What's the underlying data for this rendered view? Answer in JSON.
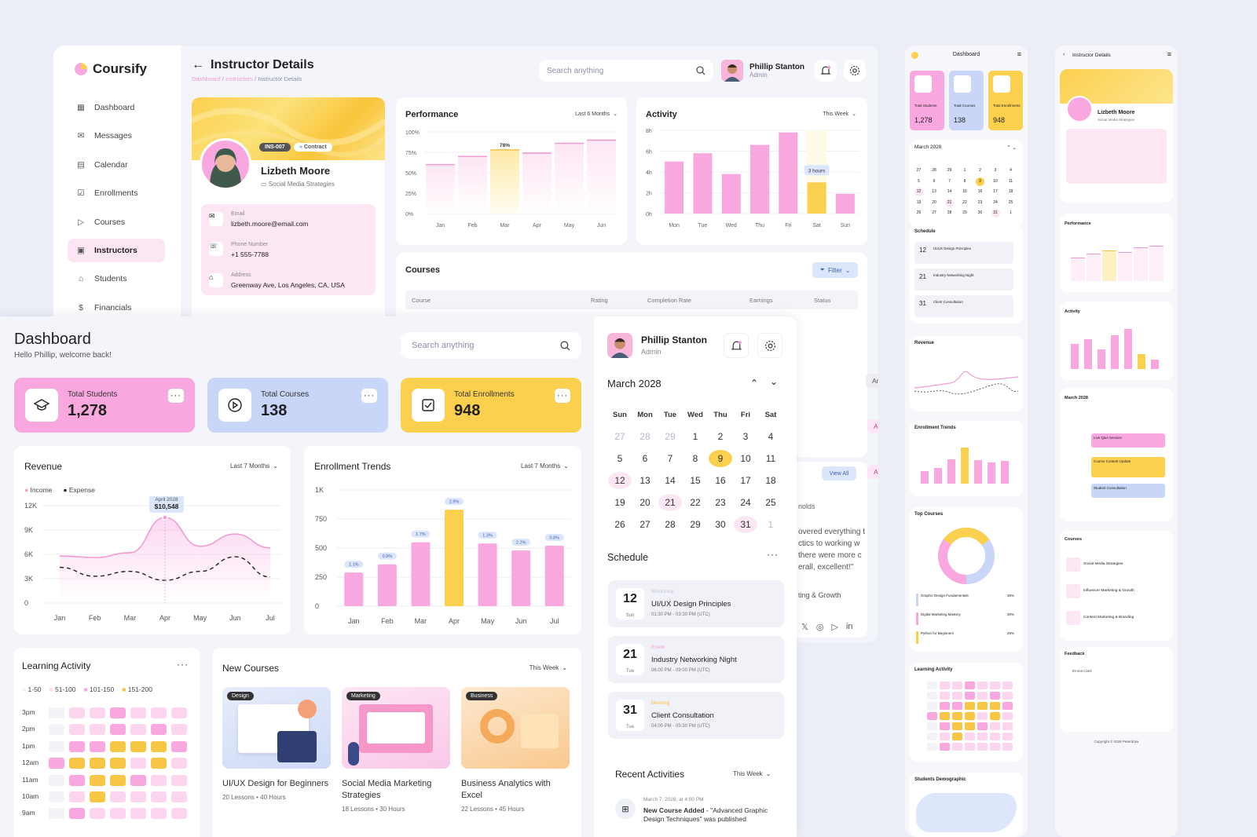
{
  "back": {
    "brand": "Coursify",
    "page_title": "Instructor Details",
    "breadcrumb": [
      "Dashboard",
      "Instructors",
      "Instructor Details"
    ],
    "search_placeholder": "Search anything",
    "user": {
      "name": "Phillip Stanton",
      "role": "Admin"
    },
    "nav": [
      "Dashboard",
      "Messages",
      "Calendar",
      "Enrollments",
      "Courses",
      "Instructors",
      "Students",
      "Financials"
    ],
    "nav_active": "Instructors",
    "profile": {
      "id": "INS-007",
      "type": "Contract",
      "name": "Lizbeth Moore",
      "specialty": "Social Media Strategies",
      "email_label": "Email",
      "email": "lizbeth.moore@email.com",
      "phone_label": "Phone Number",
      "phone": "+1 555-7788",
      "address_label": "Address",
      "address": "Greenway Ave, Los Angeles, CA, USA"
    },
    "performance": {
      "title": "Performance",
      "range": "Last 6 Months",
      "highlight": "78%"
    },
    "activity": {
      "title": "Activity",
      "range": "This Week",
      "highlight": "3 hours"
    },
    "courses": {
      "title": "Courses",
      "filter": "Filter",
      "columns": [
        "Course",
        "Rating",
        "Completion Rate",
        "Earnings",
        "Status"
      ],
      "statuses": [
        "Archived",
        "Active",
        "Active"
      ],
      "view_all": "View All"
    },
    "feedback": {
      "label": "nolds",
      "lines": [
        "overed everything t",
        "ctics to working w",
        "there were more c",
        "erall, excellent!\""
      ],
      "course": "ting & Growth"
    }
  },
  "dashboard": {
    "title": "Dashboard",
    "greeting": "Hello Phillip, welcome back!",
    "search_placeholder": "Search anything",
    "user": {
      "name": "Phillip Stanton",
      "role": "Admin"
    },
    "stats": [
      {
        "label": "Total Students",
        "value": "1,278",
        "color": "#f9a8df",
        "icon": "graduation-cap-icon"
      },
      {
        "label": "Total Courses",
        "value": "138",
        "color": "#c9d6f7",
        "icon": "play-circle-icon"
      },
      {
        "label": "Total Enrollments",
        "value": "948",
        "color": "#fcd04f",
        "icon": "checkbox-icon"
      }
    ],
    "revenue": {
      "title": "Revenue",
      "range": "Last 7 Months",
      "legend": [
        "Income",
        "Expense"
      ],
      "tooltip_date": "April 2028",
      "tooltip_value": "$10,548"
    },
    "enrollment": {
      "title": "Enrollment Trends",
      "range": "Last 7 Months",
      "badges": [
        "1.1%",
        "0.9%",
        "1.7%",
        "2.9%",
        "1.3%",
        "2.2%",
        "0.8%"
      ]
    },
    "learning": {
      "title": "Learning Activity",
      "legend": [
        "1-50",
        "51-100",
        "101-150",
        "151-200"
      ],
      "hours": [
        "3pm",
        "2pm",
        "1pm",
        "12am",
        "11am",
        "10am",
        "9am"
      ]
    },
    "new_courses": {
      "title": "New Courses",
      "range": "This Week",
      "items": [
        {
          "tag": "Design",
          "title": "UI/UX Design for Beginners",
          "meta": "20 Lessons  •  40 Hours"
        },
        {
          "tag": "Marketing",
          "title": "Social Media Marketing Strategies",
          "meta": "18 Lessons  •  30 Hours"
        },
        {
          "tag": "Business",
          "title": "Business Analytics with Excel",
          "meta": "22 Lessons  •  45 Hours"
        }
      ]
    },
    "calendar": {
      "month": "March 2028",
      "weekdays": [
        "Sun",
        "Mon",
        "Tue",
        "Wed",
        "Thu",
        "Fri",
        "Sat"
      ],
      "days": [
        "27",
        "28",
        "29",
        "1",
        "2",
        "3",
        "4",
        "5",
        "6",
        "7",
        "8",
        "9",
        "10",
        "11",
        "12",
        "13",
        "14",
        "15",
        "16",
        "17",
        "18",
        "19",
        "20",
        "21",
        "22",
        "23",
        "24",
        "25",
        "26",
        "27",
        "28",
        "29",
        "30",
        "31",
        "1"
      ]
    },
    "schedule": {
      "title": "Schedule",
      "items": [
        {
          "day": "12",
          "dow": "Sun",
          "type": "Workshop",
          "title": "UI/UX Design Principles",
          "time": "01:30 PM - 03:30 PM (UTC)",
          "color": "#c4c6d4"
        },
        {
          "day": "21",
          "dow": "Tue",
          "type": "Event",
          "title": "Industry Networking Night",
          "time": "06:00 PM - 09:00 PM (UTC)",
          "color": "#f29bd3"
        },
        {
          "day": "31",
          "dow": "Tue",
          "type": "Meeting",
          "title": "Client Consultation",
          "time": "04:00 PM - 05:30 PM (UTC)",
          "color": "#f5c24a"
        }
      ]
    },
    "recent": {
      "title": "Recent Activities",
      "range": "This Week",
      "date": "March 7, 2028, at 4:00 PM",
      "text_bold": "New Course Added",
      "text": " - \"Advanced Graphic Design Techniques\" was published"
    }
  },
  "mobile1": {
    "title": "Dashboard",
    "stats": [
      {
        "label": "Total Students",
        "value": "1,278"
      },
      {
        "label": "Total Courses",
        "value": "138"
      },
      {
        "label": "Total Enrollments",
        "value": "948"
      }
    ],
    "month": "March 2028",
    "schedule_title": "Schedule",
    "schedule": [
      {
        "day": "12",
        "title": "UI/UX Design Principles"
      },
      {
        "day": "21",
        "title": "Industry Networking Night"
      },
      {
        "day": "31",
        "title": "Client Consultation"
      }
    ],
    "revenue_title": "Revenue",
    "enrollment_title": "Enrollment Trends",
    "top_courses_title": "Top Courses",
    "top_courses": [
      {
        "name": "Graphic Design Fundamentals",
        "pct": "35%"
      },
      {
        "name": "Digital Marketing Mastery",
        "pct": "30%"
      },
      {
        "name": "Python for Beginners",
        "pct": "25%"
      }
    ],
    "learning_title": "Learning Activity",
    "demographic_title": "Students Demographic"
  },
  "mobile2": {
    "title": "Instructor Details",
    "name": "Lizbeth Moore",
    "specialty": "Social Media Strategies",
    "performance_title": "Performance",
    "activity_title": "Activity",
    "month": "March 2028",
    "events": [
      "Live Q&A Session",
      "Course Content Update",
      "Student Consultation"
    ],
    "courses_title": "Courses",
    "courses": [
      "Social Media Strategies",
      "Influencer Marketing & Growth",
      "Content Marketing & Branding"
    ],
    "feedback_title": "Feedback",
    "feedback_name": "Emma Clark",
    "copyright": "Copyright © 2028 Peterdraw"
  },
  "chart_data": [
    {
      "type": "line",
      "title": "Revenue",
      "categories": [
        "Jan",
        "Feb",
        "Mar",
        "Apr",
        "May",
        "Jun",
        "Jul"
      ],
      "yticks": [
        "0",
        "3K",
        "6K",
        "9K",
        "12K"
      ],
      "ylim": [
        0,
        12000
      ],
      "series": [
        {
          "name": "Income",
          "values": [
            5800,
            5600,
            6200,
            10548,
            7000,
            8500,
            6800
          ]
        },
        {
          "name": "Expense",
          "values": [
            4400,
            3300,
            3900,
            2800,
            3900,
            5700,
            3200
          ]
        }
      ]
    },
    {
      "type": "bar",
      "title": "Enrollment Trends",
      "categories": [
        "Jan",
        "Feb",
        "Mar",
        "Apr",
        "May",
        "Jun",
        "Jul"
      ],
      "yticks": [
        "0",
        "250",
        "500",
        "750",
        "1K"
      ],
      "ylim": [
        0,
        1000
      ],
      "values": [
        290,
        360,
        550,
        830,
        540,
        480,
        520
      ]
    },
    {
      "type": "bar",
      "title": "Performance",
      "categories": [
        "Jan",
        "Feb",
        "Mar",
        "Apr",
        "May",
        "Jun"
      ],
      "yticks": [
        "0%",
        "25%",
        "50%",
        "75%",
        "100%"
      ],
      "ylim": [
        0,
        100
      ],
      "values": [
        60,
        70,
        78,
        74,
        86,
        90
      ]
    },
    {
      "type": "bar",
      "title": "Activity",
      "categories": [
        "Mon",
        "Tue",
        "Wed",
        "Thu",
        "Fri",
        "Sat",
        "Sun"
      ],
      "yticks": [
        "0h",
        "2h",
        "4h",
        "6h",
        "8h"
      ],
      "ylim": [
        0,
        8
      ],
      "values": [
        5,
        5.8,
        3.8,
        6.6,
        7.8,
        3,
        1.9
      ]
    }
  ]
}
